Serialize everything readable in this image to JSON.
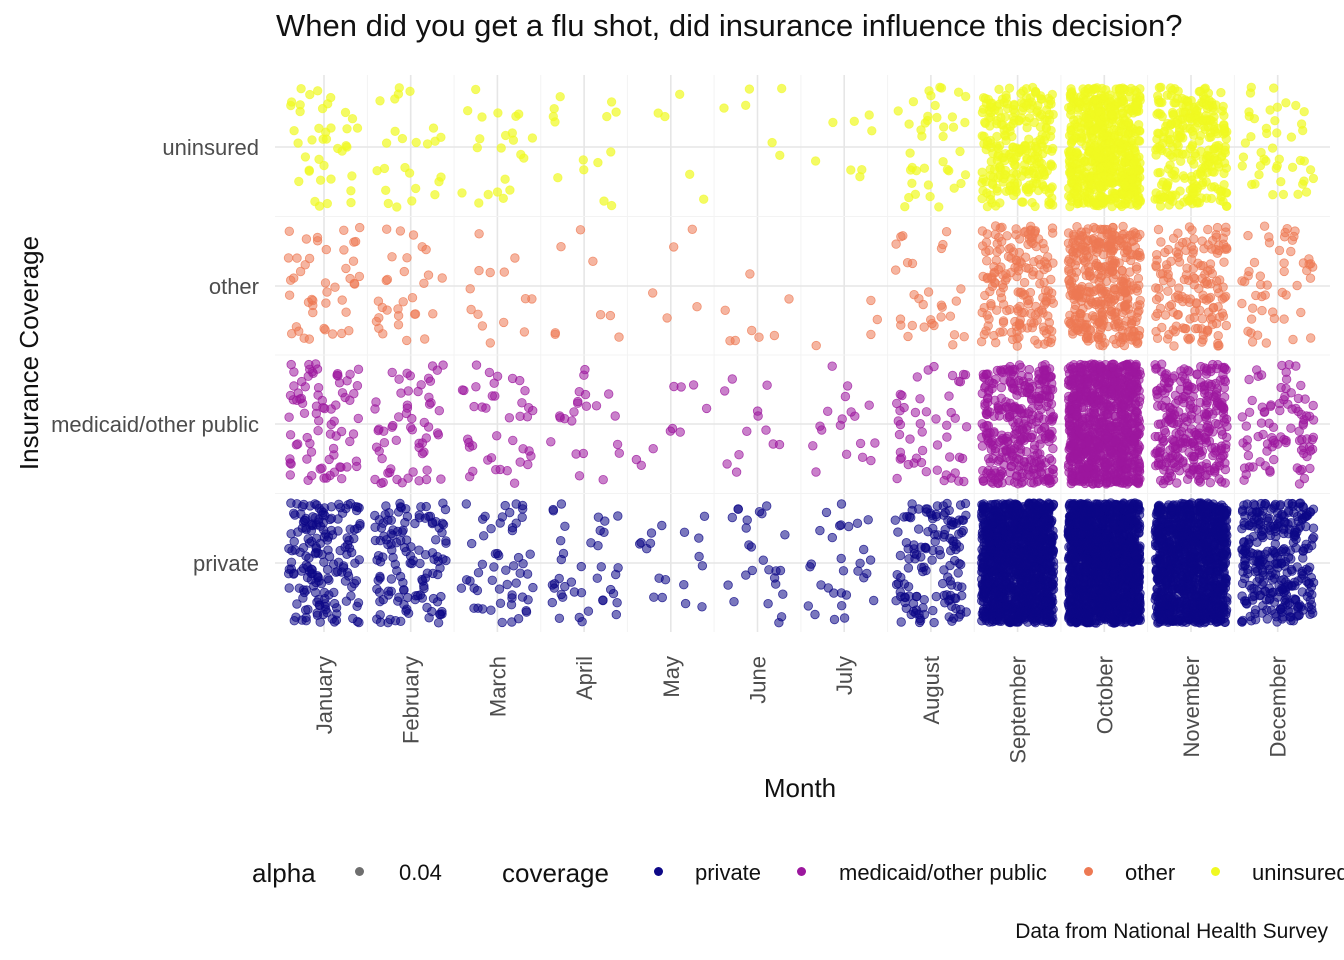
{
  "chart_data": {
    "type": "scatter",
    "title": "When did you get a flu shot, did insurance influence this decision?",
    "xlabel": "Month",
    "ylabel": "Insurance Coverage",
    "categories_x": [
      "January",
      "February",
      "March",
      "April",
      "May",
      "June",
      "July",
      "August",
      "September",
      "October",
      "November",
      "December"
    ],
    "categories_y": [
      "private",
      "medicaid/other public",
      "other",
      "uninsured"
    ],
    "grid": true,
    "legend_position": "bottom",
    "caption": "Data from National Health Survey",
    "legend": {
      "alpha_title": "alpha",
      "alpha_value": "0.04",
      "coverage_title": "coverage",
      "coverage_items": [
        "private",
        "medicaid/other public",
        "other",
        "uninsured"
      ]
    },
    "colors": {
      "private": "#0d0887",
      "medicaid/other public": "#9c179e",
      "other": "#ed7953",
      "uninsured": "#f0f921"
    },
    "series": [
      {
        "name": "private",
        "values": [
          180,
          130,
          55,
          40,
          18,
          25,
          30,
          140,
          1400,
          1600,
          1200,
          320
        ]
      },
      {
        "name": "medicaid/other public",
        "values": [
          80,
          60,
          40,
          22,
          10,
          12,
          18,
          50,
          350,
          900,
          300,
          90
        ]
      },
      {
        "name": "other",
        "values": [
          45,
          30,
          14,
          8,
          5,
          8,
          4,
          30,
          180,
          380,
          160,
          50
        ]
      },
      {
        "name": "uninsured",
        "values": [
          40,
          25,
          22,
          14,
          5,
          6,
          8,
          40,
          260,
          600,
          280,
          45
        ]
      }
    ]
  }
}
